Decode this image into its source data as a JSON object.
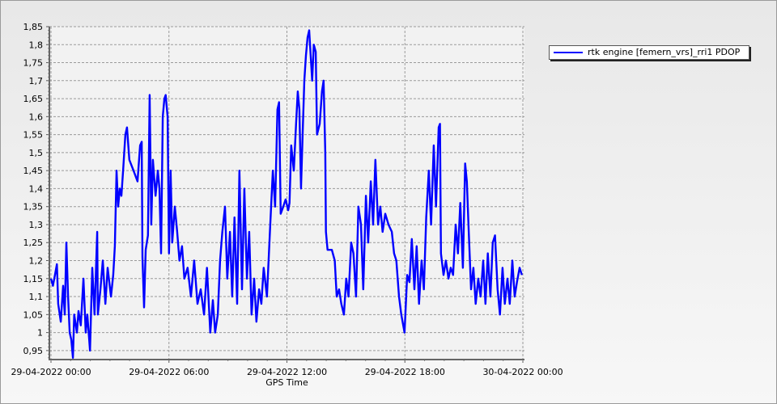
{
  "chart_data": {
    "type": "line",
    "title": "",
    "xlabel": "GPS Time",
    "ylabel": "",
    "xlim": [
      "2022-04-29T00:00",
      "2022-04-30T00:00"
    ],
    "ylim": [
      0.925,
      1.85
    ],
    "x_tick_labels": [
      "29-04-2022 00:00",
      "29-04-2022 06:00",
      "29-04-2022 12:00",
      "29-04-2022 18:00",
      "30-04-2022 00:00"
    ],
    "y_tick_labels": [
      "0,95",
      "1",
      "1,05",
      "1,1",
      "1,15",
      "1,2",
      "1,25",
      "1,3",
      "1,35",
      "1,4",
      "1,45",
      "1,5",
      "1,55",
      "1,6",
      "1,65",
      "1,7",
      "1,75",
      "1,8",
      "1,85"
    ],
    "y_ticks": [
      0.95,
      1,
      1.05,
      1.1,
      1.15,
      1.2,
      1.25,
      1.3,
      1.35,
      1.4,
      1.45,
      1.5,
      1.55,
      1.6,
      1.65,
      1.7,
      1.75,
      1.8,
      1.85
    ],
    "grid": true,
    "legend_position": "top-right",
    "series": [
      {
        "name": "rtk engine [femern_vrs]_rri1 PDOP",
        "color": "#0000ff",
        "points": [
          [
            "00:00",
            1.15
          ],
          [
            "00:06",
            1.13
          ],
          [
            "00:12",
            1.16
          ],
          [
            "00:18",
            1.19
          ],
          [
            "00:22",
            1.08
          ],
          [
            "00:30",
            1.03
          ],
          [
            "00:37",
            1.13
          ],
          [
            "00:42",
            1.05
          ],
          [
            "00:47",
            1.25
          ],
          [
            "00:52",
            1.1
          ],
          [
            "00:57",
            1.0
          ],
          [
            "01:02",
            0.98
          ],
          [
            "01:07",
            0.93
          ],
          [
            "01:11",
            1.05
          ],
          [
            "01:19",
            1.0
          ],
          [
            "01:24",
            1.06
          ],
          [
            "01:31",
            1.02
          ],
          [
            "01:39",
            1.15
          ],
          [
            "01:46",
            1.0
          ],
          [
            "01:51",
            1.05
          ],
          [
            "01:59",
            0.95
          ],
          [
            "02:06",
            1.18
          ],
          [
            "02:13",
            1.05
          ],
          [
            "02:21",
            1.28
          ],
          [
            "02:23",
            1.05
          ],
          [
            "02:31",
            1.12
          ],
          [
            "02:38",
            1.2
          ],
          [
            "02:46",
            1.08
          ],
          [
            "02:53",
            1.18
          ],
          [
            "03:03",
            1.1
          ],
          [
            "03:10",
            1.16
          ],
          [
            "03:15",
            1.24
          ],
          [
            "03:20",
            1.45
          ],
          [
            "03:25",
            1.35
          ],
          [
            "03:30",
            1.4
          ],
          [
            "03:35",
            1.38
          ],
          [
            "03:40",
            1.45
          ],
          [
            "03:47",
            1.55
          ],
          [
            "03:52",
            1.57
          ],
          [
            "03:59",
            1.48
          ],
          [
            "04:12",
            1.45
          ],
          [
            "04:24",
            1.42
          ],
          [
            "04:32",
            1.52
          ],
          [
            "04:37",
            1.53
          ],
          [
            "04:39",
            1.21
          ],
          [
            "04:44",
            1.07
          ],
          [
            "04:49",
            1.23
          ],
          [
            "04:56",
            1.27
          ],
          [
            "05:01",
            1.66
          ],
          [
            "05:06",
            1.3
          ],
          [
            "05:11",
            1.48
          ],
          [
            "05:19",
            1.38
          ],
          [
            "05:26",
            1.45
          ],
          [
            "05:31",
            1.4
          ],
          [
            "05:36",
            1.22
          ],
          [
            "05:41",
            1.6
          ],
          [
            "05:46",
            1.65
          ],
          [
            "05:50",
            1.66
          ],
          [
            "05:56",
            1.6
          ],
          [
            "06:00",
            1.22
          ],
          [
            "06:05",
            1.45
          ],
          [
            "06:10",
            1.25
          ],
          [
            "06:18",
            1.35
          ],
          [
            "06:25",
            1.28
          ],
          [
            "06:32",
            1.2
          ],
          [
            "06:40",
            1.24
          ],
          [
            "06:47",
            1.15
          ],
          [
            "06:57",
            1.18
          ],
          [
            "07:07",
            1.1
          ],
          [
            "07:17",
            1.2
          ],
          [
            "07:27",
            1.08
          ],
          [
            "07:37",
            1.12
          ],
          [
            "07:47",
            1.05
          ],
          [
            "07:56",
            1.18
          ],
          [
            "08:06",
            1.0
          ],
          [
            "08:14",
            1.09
          ],
          [
            "08:21",
            1.0
          ],
          [
            "08:29",
            1.05
          ],
          [
            "08:36",
            1.2
          ],
          [
            "08:43",
            1.28
          ],
          [
            "08:51",
            1.35
          ],
          [
            "08:58",
            1.15
          ],
          [
            "09:06",
            1.28
          ],
          [
            "09:13",
            1.1
          ],
          [
            "09:20",
            1.32
          ],
          [
            "09:28",
            1.08
          ],
          [
            "09:35",
            1.45
          ],
          [
            "09:43",
            1.12
          ],
          [
            "09:50",
            1.4
          ],
          [
            "09:58",
            1.15
          ],
          [
            "10:05",
            1.28
          ],
          [
            "10:12",
            1.05
          ],
          [
            "10:20",
            1.15
          ],
          [
            "10:27",
            1.03
          ],
          [
            "10:35",
            1.12
          ],
          [
            "10:42",
            1.08
          ],
          [
            "10:49",
            1.18
          ],
          [
            "10:59",
            1.1
          ],
          [
            "11:09",
            1.3
          ],
          [
            "11:17",
            1.45
          ],
          [
            "11:24",
            1.35
          ],
          [
            "11:31",
            1.62
          ],
          [
            "11:36",
            1.64
          ],
          [
            "11:41",
            1.33
          ],
          [
            "11:49",
            1.35
          ],
          [
            "11:56",
            1.37
          ],
          [
            "12:04",
            1.34
          ],
          [
            "12:08",
            1.36
          ],
          [
            "12:13",
            1.52
          ],
          [
            "12:21",
            1.45
          ],
          [
            "12:28",
            1.58
          ],
          [
            "12:33",
            1.67
          ],
          [
            "12:38",
            1.62
          ],
          [
            "12:43",
            1.4
          ],
          [
            "12:48",
            1.55
          ],
          [
            "12:53",
            1.7
          ],
          [
            "12:58",
            1.77
          ],
          [
            "13:03",
            1.82
          ],
          [
            "13:08",
            1.84
          ],
          [
            "13:13",
            1.76
          ],
          [
            "13:17",
            1.7
          ],
          [
            "13:22",
            1.8
          ],
          [
            "13:28",
            1.78
          ],
          [
            "13:32",
            1.55
          ],
          [
            "13:40",
            1.58
          ],
          [
            "13:47",
            1.67
          ],
          [
            "13:52",
            1.7
          ],
          [
            "13:57",
            1.5
          ],
          [
            "13:59",
            1.28
          ],
          [
            "14:04",
            1.23
          ],
          [
            "14:17",
            1.23
          ],
          [
            "14:26",
            1.2
          ],
          [
            "14:32",
            1.1
          ],
          [
            "14:39",
            1.12
          ],
          [
            "14:46",
            1.08
          ],
          [
            "14:54",
            1.05
          ],
          [
            "15:01",
            1.15
          ],
          [
            "15:08",
            1.1
          ],
          [
            "15:16",
            1.25
          ],
          [
            "15:23",
            1.22
          ],
          [
            "15:31",
            1.1
          ],
          [
            "15:38",
            1.35
          ],
          [
            "15:46",
            1.3
          ],
          [
            "15:53",
            1.12
          ],
          [
            "16:01",
            1.38
          ],
          [
            "16:08",
            1.25
          ],
          [
            "16:16",
            1.42
          ],
          [
            "16:23",
            1.3
          ],
          [
            "16:30",
            1.48
          ],
          [
            "16:38",
            1.3
          ],
          [
            "16:45",
            1.35
          ],
          [
            "16:52",
            1.28
          ],
          [
            "17:00",
            1.33
          ],
          [
            "17:10",
            1.3
          ],
          [
            "17:20",
            1.28
          ],
          [
            "17:27",
            1.22
          ],
          [
            "17:34",
            1.2
          ],
          [
            "17:42",
            1.1
          ],
          [
            "17:49",
            1.05
          ],
          [
            "17:59",
            1.0
          ],
          [
            "18:07",
            1.16
          ],
          [
            "18:14",
            1.14
          ],
          [
            "18:21",
            1.26
          ],
          [
            "18:29",
            1.12
          ],
          [
            "18:36",
            1.24
          ],
          [
            "18:43",
            1.08
          ],
          [
            "18:51",
            1.2
          ],
          [
            "18:58",
            1.12
          ],
          [
            "19:05",
            1.32
          ],
          [
            "19:13",
            1.45
          ],
          [
            "19:20",
            1.3
          ],
          [
            "19:28",
            1.52
          ],
          [
            "19:35",
            1.35
          ],
          [
            "19:43",
            1.57
          ],
          [
            "19:47",
            1.58
          ],
          [
            "19:50",
            1.22
          ],
          [
            "19:58",
            1.16
          ],
          [
            "20:05",
            1.2
          ],
          [
            "20:13",
            1.15
          ],
          [
            "20:20",
            1.18
          ],
          [
            "20:27",
            1.16
          ],
          [
            "20:35",
            1.3
          ],
          [
            "20:42",
            1.22
          ],
          [
            "20:49",
            1.36
          ],
          [
            "20:57",
            1.18
          ],
          [
            "21:04",
            1.47
          ],
          [
            "21:09",
            1.42
          ],
          [
            "21:14",
            1.3
          ],
          [
            "21:22",
            1.12
          ],
          [
            "21:29",
            1.18
          ],
          [
            "21:36",
            1.08
          ],
          [
            "21:44",
            1.15
          ],
          [
            "21:51",
            1.1
          ],
          [
            "21:59",
            1.2
          ],
          [
            "22:06",
            1.08
          ],
          [
            "22:13",
            1.22
          ],
          [
            "22:21",
            1.1
          ],
          [
            "22:28",
            1.25
          ],
          [
            "22:35",
            1.27
          ],
          [
            "22:43",
            1.12
          ],
          [
            "22:50",
            1.05
          ],
          [
            "22:58",
            1.18
          ],
          [
            "23:05",
            1.08
          ],
          [
            "23:13",
            1.15
          ],
          [
            "23:20",
            1.08
          ],
          [
            "23:28",
            1.2
          ],
          [
            "23:35",
            1.1
          ],
          [
            "23:42",
            1.14
          ],
          [
            "23:50",
            1.18
          ],
          [
            "23:57",
            1.16
          ]
        ]
      }
    ]
  }
}
